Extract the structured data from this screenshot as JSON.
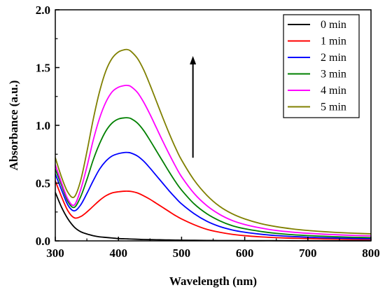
{
  "chart_data": {
    "type": "line",
    "xlabel": "Wavelength (nm)",
    "ylabel": "Absorbance (a.u.)",
    "xlim": [
      300,
      800
    ],
    "ylim": [
      0,
      2.0
    ],
    "xticks": [
      300,
      400,
      500,
      600,
      700,
      800
    ],
    "yticks": [
      0.0,
      0.5,
      1.0,
      1.5,
      2.0
    ],
    "xtick_labels": [
      "300",
      "400",
      "500",
      "600",
      "700",
      "800"
    ],
    "ytick_labels": [
      "0.0",
      "0.5",
      "1.0",
      "1.5",
      "2.0"
    ],
    "grid": false,
    "legend_position": "top-right",
    "annotations": [
      {
        "type": "arrow",
        "direction": "up",
        "x": 518,
        "y_from": 0.72,
        "y_to": 1.6
      }
    ],
    "x": [
      300,
      310,
      320,
      330,
      340,
      350,
      360,
      370,
      380,
      390,
      400,
      410,
      415,
      420,
      430,
      440,
      450,
      460,
      470,
      480,
      490,
      500,
      520,
      540,
      560,
      580,
      600,
      625,
      650,
      675,
      700,
      725,
      750,
      775,
      800
    ],
    "series": [
      {
        "name": "0 min",
        "color": "#000000",
        "values": [
          0.42,
          0.29,
          0.19,
          0.12,
          0.08,
          0.06,
          0.045,
          0.035,
          0.03,
          0.025,
          0.02,
          0.018,
          0.017,
          0.016,
          0.014,
          0.012,
          0.011,
          0.01,
          0.009,
          0.008,
          0.007,
          0.006,
          0.005,
          0.004,
          0.003,
          0.003,
          0.002,
          0.002,
          0.002,
          0.001,
          0.001,
          0.001,
          0.001,
          0.001,
          0.001
        ]
      },
      {
        "name": "1 min",
        "color": "#ff0000",
        "values": [
          0.52,
          0.38,
          0.26,
          0.2,
          0.21,
          0.25,
          0.3,
          0.35,
          0.39,
          0.415,
          0.425,
          0.43,
          0.43,
          0.428,
          0.415,
          0.39,
          0.36,
          0.325,
          0.29,
          0.255,
          0.22,
          0.19,
          0.14,
          0.1,
          0.075,
          0.057,
          0.045,
          0.035,
          0.028,
          0.023,
          0.02,
          0.017,
          0.015,
          0.013,
          0.012
        ]
      },
      {
        "name": "2 min",
        "color": "#0000ff",
        "values": [
          0.58,
          0.44,
          0.31,
          0.26,
          0.31,
          0.41,
          0.52,
          0.62,
          0.69,
          0.735,
          0.755,
          0.765,
          0.765,
          0.76,
          0.735,
          0.69,
          0.63,
          0.565,
          0.5,
          0.435,
          0.375,
          0.32,
          0.235,
          0.17,
          0.125,
          0.095,
          0.075,
          0.058,
          0.046,
          0.038,
          0.032,
          0.027,
          0.024,
          0.021,
          0.019
        ]
      },
      {
        "name": "3 min",
        "color": "#008000",
        "values": [
          0.62,
          0.48,
          0.34,
          0.29,
          0.38,
          0.53,
          0.7,
          0.84,
          0.95,
          1.02,
          1.055,
          1.065,
          1.065,
          1.058,
          1.02,
          0.955,
          0.87,
          0.78,
          0.69,
          0.6,
          0.515,
          0.44,
          0.32,
          0.235,
          0.175,
          0.132,
          0.105,
          0.082,
          0.065,
          0.054,
          0.046,
          0.04,
          0.035,
          0.031,
          0.028
        ]
      },
      {
        "name": "4 min",
        "color": "#ff00ff",
        "values": [
          0.66,
          0.5,
          0.36,
          0.31,
          0.44,
          0.64,
          0.87,
          1.06,
          1.2,
          1.29,
          1.33,
          1.345,
          1.345,
          1.335,
          1.285,
          1.2,
          1.095,
          0.98,
          0.865,
          0.755,
          0.65,
          0.555,
          0.41,
          0.305,
          0.23,
          0.177,
          0.142,
          0.112,
          0.09,
          0.076,
          0.066,
          0.058,
          0.052,
          0.047,
          0.043
        ]
      },
      {
        "name": "5 min",
        "color": "#808000",
        "values": [
          0.72,
          0.55,
          0.42,
          0.38,
          0.52,
          0.77,
          1.05,
          1.29,
          1.47,
          1.58,
          1.635,
          1.655,
          1.655,
          1.64,
          1.58,
          1.48,
          1.35,
          1.21,
          1.07,
          0.935,
          0.81,
          0.7,
          0.525,
          0.395,
          0.3,
          0.235,
          0.19,
          0.15,
          0.123,
          0.104,
          0.09,
          0.08,
          0.072,
          0.066,
          0.061
        ]
      }
    ]
  }
}
